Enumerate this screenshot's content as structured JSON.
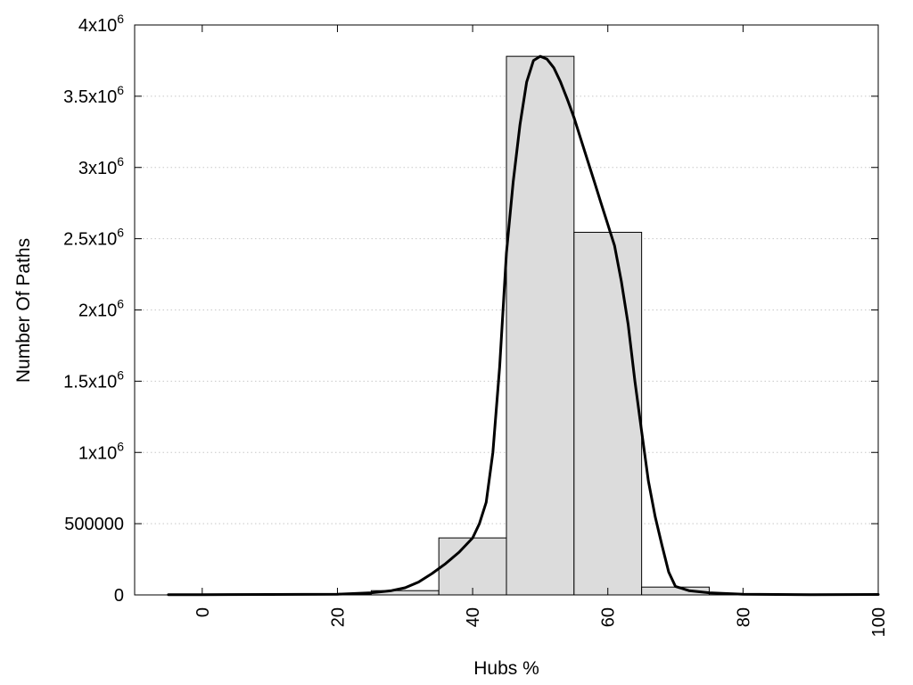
{
  "chart_data": {
    "type": "bar",
    "xlabel": "Hubs %",
    "ylabel": "Number Of Paths",
    "xlim": [
      -10,
      100
    ],
    "ylim": [
      0,
      4000000
    ],
    "grid": true,
    "x_ticks": [
      {
        "value": 0,
        "label": "0"
      },
      {
        "value": 20,
        "label": "20"
      },
      {
        "value": 40,
        "label": "40"
      },
      {
        "value": 60,
        "label": "60"
      },
      {
        "value": 80,
        "label": "80"
      },
      {
        "value": 100,
        "label": "100"
      }
    ],
    "y_ticks": [
      {
        "value": 0,
        "base": "0",
        "exp": ""
      },
      {
        "value": 500000,
        "base": "500000",
        "exp": ""
      },
      {
        "value": 1000000,
        "base": "1x10",
        "exp": "6"
      },
      {
        "value": 1500000,
        "base": "1.5x10",
        "exp": "6"
      },
      {
        "value": 2000000,
        "base": "2x10",
        "exp": "6"
      },
      {
        "value": 2500000,
        "base": "2.5x10",
        "exp": "6"
      },
      {
        "value": 3000000,
        "base": "3x10",
        "exp": "6"
      },
      {
        "value": 3500000,
        "base": "3.5x10",
        "exp": "6"
      },
      {
        "value": 4000000,
        "base": "4x10",
        "exp": "6"
      }
    ],
    "bars": [
      {
        "x0": -5,
        "x1": 5,
        "value": 3000
      },
      {
        "x0": 5,
        "x1": 15,
        "value": 3000
      },
      {
        "x0": 15,
        "x1": 25,
        "value": 6000
      },
      {
        "x0": 25,
        "x1": 35,
        "value": 30000
      },
      {
        "x0": 35,
        "x1": 45,
        "value": 400000
      },
      {
        "x0": 45,
        "x1": 55,
        "value": 3780000
      },
      {
        "x0": 55,
        "x1": 65,
        "value": 2545000
      },
      {
        "x0": 65,
        "x1": 75,
        "value": 55000
      },
      {
        "x0": 75,
        "x1": 85,
        "value": 8000
      },
      {
        "x0": 85,
        "x1": 95,
        "value": 3000
      },
      {
        "x0": 95,
        "x1": 105,
        "value": 3000
      }
    ],
    "curve": {
      "x": [
        -5,
        0,
        10,
        20,
        25,
        28,
        30,
        32,
        34,
        36,
        38,
        40,
        41,
        42,
        43,
        44,
        45,
        46,
        47,
        48,
        49,
        50,
        51,
        52,
        53,
        54,
        55,
        56,
        57,
        58,
        59,
        60,
        61,
        62,
        63,
        64,
        65,
        66,
        67,
        68,
        69,
        70,
        72,
        75,
        80,
        90,
        100
      ],
      "y": [
        2000,
        2000,
        3000,
        5000,
        15000,
        30000,
        50000,
        90000,
        150000,
        220000,
        300000,
        400000,
        500000,
        650000,
        1000000,
        1600000,
        2400000,
        2900000,
        3300000,
        3600000,
        3750000,
        3780000,
        3760000,
        3700000,
        3600000,
        3480000,
        3350000,
        3200000,
        3050000,
        2900000,
        2750000,
        2600000,
        2450000,
        2200000,
        1900000,
        1500000,
        1150000,
        800000,
        550000,
        350000,
        160000,
        60000,
        30000,
        15000,
        5000,
        2000,
        3000
      ]
    },
    "colors": {
      "bar_fill": "#dcdcdc",
      "bar_stroke": "#000000",
      "curve": "#000000"
    }
  }
}
